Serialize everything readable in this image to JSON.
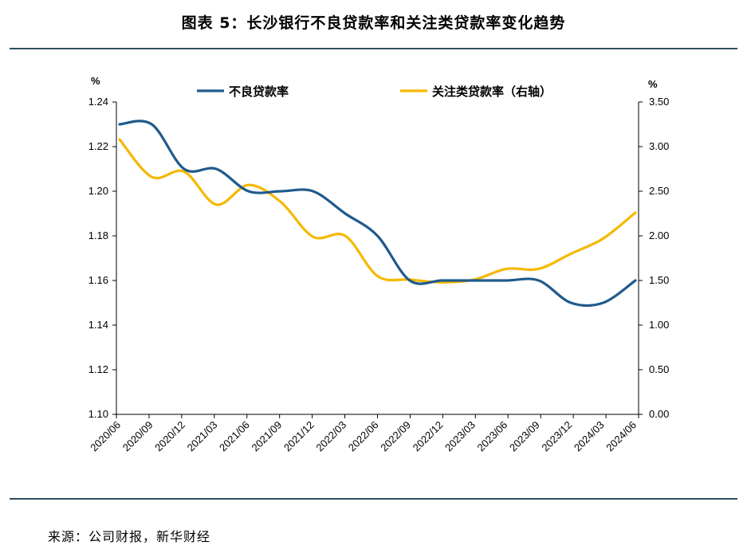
{
  "header": {
    "title": "图表 5：长沙银行不良贷款率和关注类贷款率变化趋势"
  },
  "footer": {
    "source": "来源：公司财报，新华财经"
  },
  "chart_data": {
    "type": "line",
    "x": [
      "2020/06",
      "2020/09",
      "2020/12",
      "2021/03",
      "2021/06",
      "2021/09",
      "2021/12",
      "2022/03",
      "2022/06",
      "2022/09",
      "2022/12",
      "2023/03",
      "2023/06",
      "2023/09",
      "2023/12",
      "2024/03",
      "2024/06"
    ],
    "y_left": {
      "unit": "%",
      "min": 1.1,
      "max": 1.24,
      "ticks": [
        "1.10",
        "1.12",
        "1.14",
        "1.16",
        "1.18",
        "1.20",
        "1.22",
        "1.24"
      ]
    },
    "y_right": {
      "unit": "%",
      "min": 0.0,
      "max": 3.5,
      "ticks": [
        "0.00",
        "0.50",
        "1.00",
        "1.50",
        "2.00",
        "2.50",
        "3.00",
        "3.50"
      ]
    },
    "legend_position": "top",
    "series": [
      {
        "name": "不良贷款率",
        "axis": "left",
        "color": "#1f5a8c",
        "values": [
          1.23,
          1.23,
          1.21,
          1.21,
          1.2,
          1.2,
          1.2,
          1.19,
          1.18,
          1.16,
          1.16,
          1.16,
          1.16,
          1.16,
          1.15,
          1.15,
          1.16
        ]
      },
      {
        "name": "关注类贷款率（右轴）",
        "axis": "right",
        "color": "#f5b800",
        "values": [
          3.08,
          2.66,
          2.72,
          2.35,
          2.57,
          2.38,
          1.99,
          2.0,
          1.55,
          1.51,
          1.48,
          1.51,
          1.63,
          1.63,
          1.8,
          1.97,
          2.26
        ]
      }
    ]
  }
}
